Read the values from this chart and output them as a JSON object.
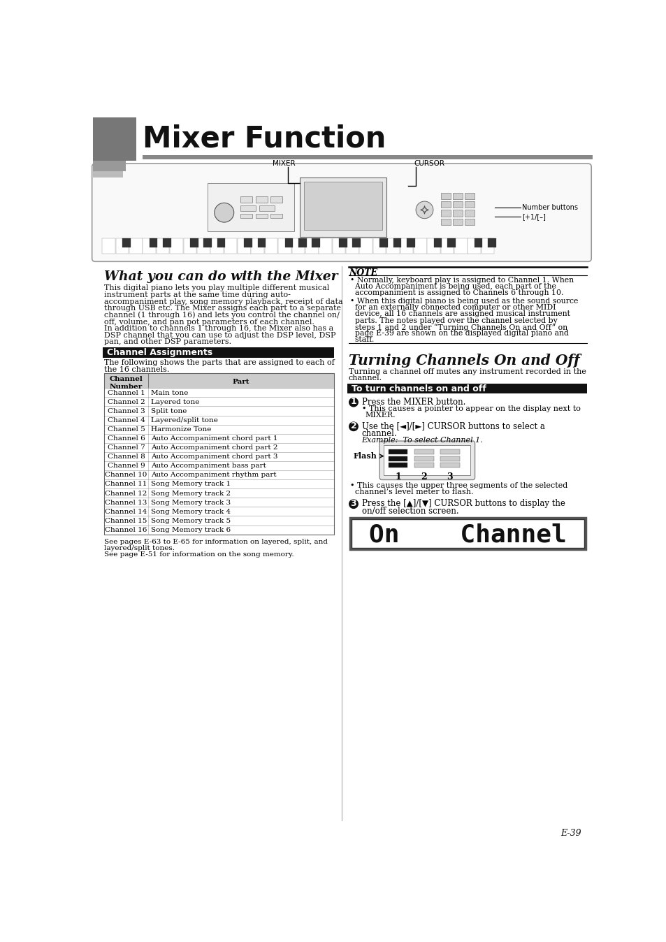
{
  "title": "Mixer Function",
  "page_number": "E-39",
  "section1_title": "What you can do with the Mixer",
  "channel_assignments_title": "Channel Assignments",
  "channel_assignments_desc1": "The following shows the parts that are assigned to each of",
  "channel_assignments_desc2": "the 16 channels.",
  "table_rows": [
    [
      "Channel 1",
      "Main tone"
    ],
    [
      "Channel 2",
      "Layered tone"
    ],
    [
      "Channel 3",
      "Split tone"
    ],
    [
      "Channel 4",
      "Layered/split tone"
    ],
    [
      "Channel 5",
      "Harmonize Tone"
    ],
    [
      "Channel 6",
      "Auto Accompaniment chord part 1"
    ],
    [
      "Channel 7",
      "Auto Accompaniment chord part 2"
    ],
    [
      "Channel 8",
      "Auto Accompaniment chord part 3"
    ],
    [
      "Channel 9",
      "Auto Accompaniment bass part"
    ],
    [
      "Channel 10",
      "Auto Accompaniment rhythm part"
    ],
    [
      "Channel 11",
      "Song Memory track 1"
    ],
    [
      "Channel 12",
      "Song Memory track 2"
    ],
    [
      "Channel 13",
      "Song Memory track 3"
    ],
    [
      "Channel 14",
      "Song Memory track 4"
    ],
    [
      "Channel 15",
      "Song Memory track 5"
    ],
    [
      "Channel 16",
      "Song Memory track 6"
    ]
  ],
  "table_footnote1": "See pages E-63 to E-65 for information on layered, split, and",
  "table_footnote1b": "layered/split tones.",
  "table_footnote2": "See page E-51 for information on the song memory.",
  "note_title": "NOTE",
  "section2_title": "Turning Channels On and Off",
  "section2_desc1": "Turning a channel off mutes any instrument recorded in the",
  "section2_desc2": "channel.",
  "turn_channels_title": "To turn channels on and off",
  "step1_text": "Press the MIXER button.",
  "step1_sub1": "• This causes a pointer to appear on the display next to",
  "step1_sub2": "  MIXER.",
  "step2_line1": "Use the [◄]/[►] CURSOR buttons to select a",
  "step2_line2": "channel.",
  "step2_example": "Example:  To select Channel 1.",
  "step2_flash": "Flash",
  "step3_line1": "Press the [▲]/[▼] CURSOR buttons to display the",
  "step3_line2": "on/off selection screen.",
  "lcd_text": "On    Channel",
  "body1_lines": [
    "This digital piano lets you play multiple different musical",
    "instrument parts at the same time during auto-",
    "accompaniment play, song memory playback, receipt of data",
    "through USB etc. The Mixer assigns each part to a separate",
    "channel (1 through 16) and lets you control the channel on/",
    "off, volume, and pan pot parameters of each channel."
  ],
  "body2_lines": [
    "In addition to channels 1 through 16, the Mixer also has a",
    "DSP channel that you can use to adjust the DSP level, DSP",
    "pan, and other DSP parameters."
  ],
  "note_b1_lines": [
    "• Normally, keyboard play is assigned to Channel 1. When",
    "  Auto Accompaniment is being used, each part of the",
    "  accompaniment is assigned to Channels 6 through 10."
  ],
  "note_b2_lines": [
    "• When this digital piano is being used as the sound source",
    "  for an externally connected computer or other MIDI",
    "  device, all 16 channels are assigned musical instrument",
    "  parts. The notes played over the channel selected by",
    "  steps 1 and 2 under “Turning Channels On and Off” on",
    "  page E-39 are shown on the displayed digital piano and",
    "  staff."
  ],
  "bg_color": "#ffffff",
  "text_color": "#000000",
  "sq_colors": [
    "#777777",
    "#999999",
    "#bbbbbb"
  ],
  "header_bar_color": "#888888",
  "dark_header_bg": "#111111",
  "table_hdr_bg": "#cccccc",
  "sep_color": "#aaaaaa"
}
